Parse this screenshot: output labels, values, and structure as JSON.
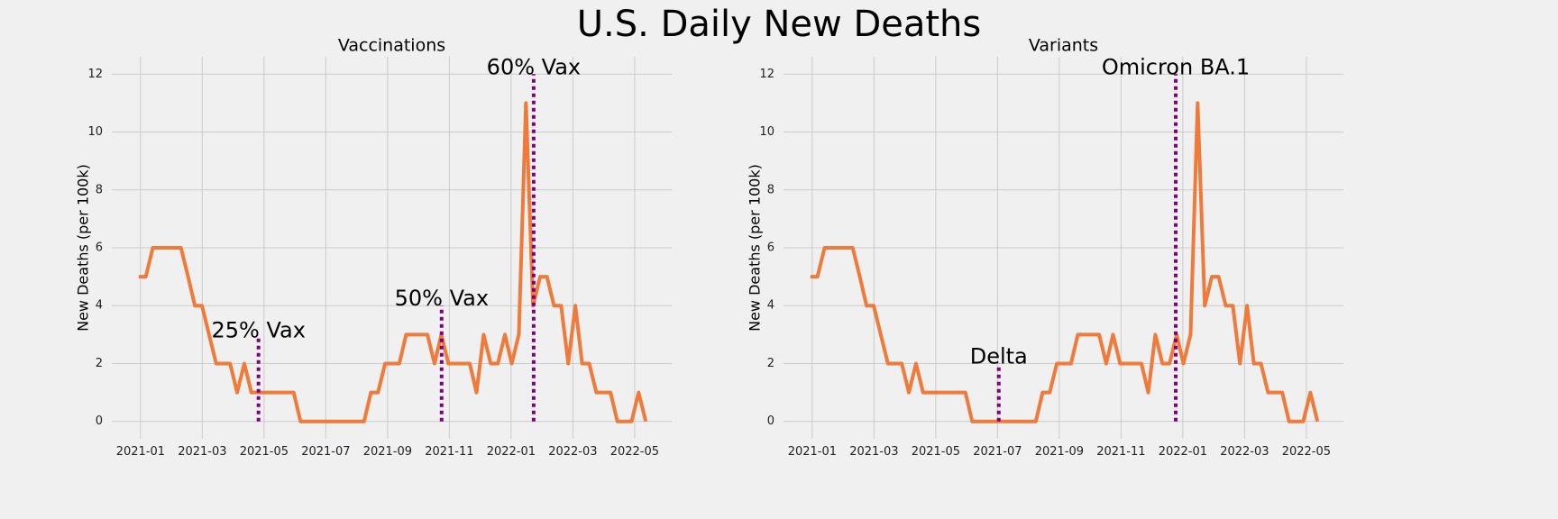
{
  "title": "U.S. Daily New Deaths",
  "chart_data": [
    {
      "type": "line",
      "title": "Vaccinations",
      "y_label": "New Deaths (per 100k)",
      "color": "#f07a3a",
      "grid": true,
      "x": [
        -0.06,
        0.17,
        0.4,
        0.62,
        0.85,
        1.08,
        1.31,
        1.54,
        1.76,
        1.99,
        2.22,
        2.45,
        2.68,
        2.9,
        3.13,
        3.36,
        3.59,
        3.82,
        4.04,
        4.27,
        4.5,
        4.73,
        4.96,
        5.18,
        5.41,
        5.64,
        5.87,
        6.1,
        6.32,
        6.55,
        6.78,
        7.01,
        7.24,
        7.46,
        7.69,
        7.92,
        8.15,
        8.38,
        8.6,
        8.83,
        9.06,
        9.29,
        9.52,
        9.74,
        9.97,
        10.2,
        10.43,
        10.66,
        10.88,
        11.11,
        11.34,
        11.57,
        11.8,
        12.02,
        12.25,
        12.48,
        12.71,
        12.94,
        13.16,
        13.39,
        13.62,
        13.85,
        14.08,
        14.3,
        14.53,
        14.76,
        14.99,
        15.22,
        15.44,
        15.67,
        15.9,
        16.13,
        16.36
      ],
      "values": [
        5,
        5,
        6,
        6,
        6,
        6,
        6,
        5,
        4,
        4,
        3,
        2,
        2,
        2,
        1,
        2,
        1,
        1,
        1,
        1,
        1,
        1,
        1,
        0,
        0,
        0,
        0,
        0,
        0,
        0,
        0,
        0,
        0,
        1,
        1,
        2,
        2,
        2,
        3,
        3,
        3,
        3,
        2,
        3,
        2,
        2,
        2,
        2,
        1,
        3,
        2,
        2,
        3,
        2,
        3,
        11,
        4,
        5,
        5,
        4,
        4,
        2,
        4,
        2,
        2,
        1,
        1,
        1,
        0,
        0,
        0,
        1,
        0
      ],
      "xlim": [
        -0.93,
        17.2
      ],
      "xticks": [
        {
          "value": 0,
          "label": "2021-01"
        },
        {
          "value": 2,
          "label": "2021-03"
        },
        {
          "value": 4,
          "label": "2021-05"
        },
        {
          "value": 6,
          "label": "2021-07"
        },
        {
          "value": 8,
          "label": "2021-09"
        },
        {
          "value": 10,
          "label": "2021-11"
        },
        {
          "value": 12,
          "label": "2022-01"
        },
        {
          "value": 14,
          "label": "2022-03"
        },
        {
          "value": 16,
          "label": "2022-05"
        }
      ],
      "ylim": [
        -0.6,
        12.6
      ],
      "yticks": [
        0,
        2,
        4,
        6,
        8,
        10,
        12
      ],
      "annotations": [
        {
          "text": "25% Vax",
          "x": 3.82,
          "y": 2.9
        },
        {
          "text": "50% Vax",
          "x": 9.75,
          "y": 4
        },
        {
          "text": "60% Vax",
          "x": 12.73,
          "y": 12
        }
      ],
      "annotation_color": "#800080"
    },
    {
      "type": "line",
      "title": "Variants",
      "y_label": "New Deaths (per 100k)",
      "color": "#f07a3a",
      "grid": true,
      "x": [
        -0.06,
        0.17,
        0.4,
        0.62,
        0.85,
        1.08,
        1.31,
        1.54,
        1.76,
        1.99,
        2.22,
        2.45,
        2.68,
        2.9,
        3.13,
        3.36,
        3.59,
        3.82,
        4.04,
        4.27,
        4.5,
        4.73,
        4.96,
        5.18,
        5.41,
        5.64,
        5.87,
        6.1,
        6.32,
        6.55,
        6.78,
        7.01,
        7.24,
        7.46,
        7.69,
        7.92,
        8.15,
        8.38,
        8.6,
        8.83,
        9.06,
        9.29,
        9.52,
        9.74,
        9.97,
        10.2,
        10.43,
        10.66,
        10.88,
        11.11,
        11.34,
        11.57,
        11.8,
        12.02,
        12.25,
        12.48,
        12.71,
        12.94,
        13.16,
        13.39,
        13.62,
        13.85,
        14.08,
        14.3,
        14.53,
        14.76,
        14.99,
        15.22,
        15.44,
        15.67,
        15.9,
        16.13,
        16.36
      ],
      "values": [
        5,
        5,
        6,
        6,
        6,
        6,
        6,
        5,
        4,
        4,
        3,
        2,
        2,
        2,
        1,
        2,
        1,
        1,
        1,
        1,
        1,
        1,
        1,
        0,
        0,
        0,
        0,
        0,
        0,
        0,
        0,
        0,
        0,
        1,
        1,
        2,
        2,
        2,
        3,
        3,
        3,
        3,
        2,
        3,
        2,
        2,
        2,
        2,
        1,
        3,
        2,
        2,
        3,
        2,
        3,
        11,
        4,
        5,
        5,
        4,
        4,
        2,
        4,
        2,
        2,
        1,
        1,
        1,
        0,
        0,
        0,
        1,
        0
      ],
      "xlim": [
        -0.93,
        17.2
      ],
      "xticks": [
        {
          "value": 0,
          "label": "2021-01"
        },
        {
          "value": 2,
          "label": "2021-03"
        },
        {
          "value": 4,
          "label": "2021-05"
        },
        {
          "value": 6,
          "label": "2021-07"
        },
        {
          "value": 8,
          "label": "2021-09"
        },
        {
          "value": 10,
          "label": "2021-11"
        },
        {
          "value": 12,
          "label": "2022-01"
        },
        {
          "value": 14,
          "label": "2022-03"
        },
        {
          "value": 16,
          "label": "2022-05"
        }
      ],
      "ylim": [
        -0.6,
        12.6
      ],
      "yticks": [
        0,
        2,
        4,
        6,
        8,
        10,
        12
      ],
      "annotations": [
        {
          "text": "Delta",
          "x": 6.04,
          "y": 2
        },
        {
          "text": "Omicron BA.1",
          "x": 11.77,
          "y": 12
        }
      ],
      "annotation_color": "#800080"
    }
  ]
}
